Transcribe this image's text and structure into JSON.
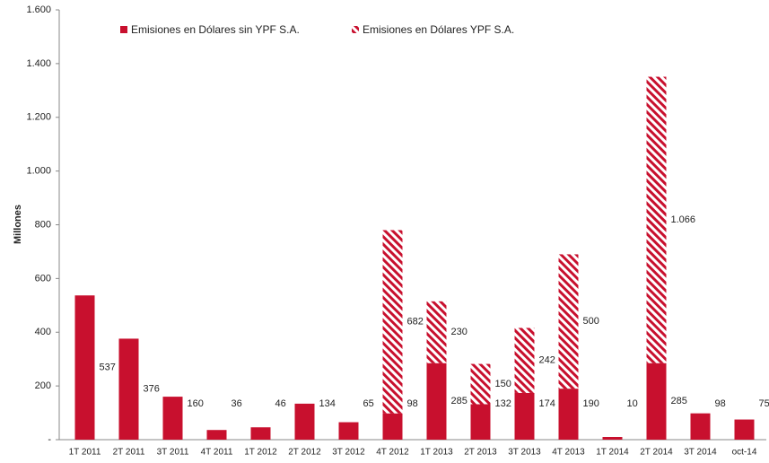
{
  "chart_data": {
    "type": "stacked_bar",
    "y_label": "Millones",
    "categories": [
      "1T 2011",
      "2T 2011",
      "3T 2011",
      "4T 2011",
      "1T 2012",
      "2T 2012",
      "3T 2012",
      "4T 2012",
      "1T 2013",
      "2T 2013",
      "3T 2013",
      "4T 2013",
      "1T 2014",
      "2T 2014",
      "3T 2014",
      "oct-14"
    ],
    "series": [
      {
        "name": "Emisiones en Dólares sin YPF S.A.",
        "color": "#c8102e",
        "pattern": "solid",
        "values": [
          537,
          376,
          160,
          36,
          46,
          134,
          65,
          98,
          285,
          132,
          174,
          190,
          10,
          285,
          98,
          75
        ]
      },
      {
        "name": "Emisiones en Dólares YPF S.A.",
        "color": "#c8102e",
        "pattern": "hatch",
        "values": [
          null,
          null,
          null,
          null,
          null,
          null,
          null,
          682,
          230,
          150,
          242,
          500,
          null,
          1066,
          null,
          null
        ],
        "value_labels": [
          null,
          null,
          null,
          null,
          null,
          null,
          null,
          "682",
          "230",
          "150",
          "242",
          "500",
          null,
          "1.066",
          null,
          null
        ]
      }
    ],
    "ylim": [
      0,
      1600
    ],
    "yticks": [
      {
        "value": 0,
        "label": "-"
      },
      200,
      400,
      600,
      800,
      {
        "value": 1000,
        "label": "1.000"
      },
      {
        "value": 1200,
        "label": "1.200"
      },
      {
        "value": 1400,
        "label": "1.400"
      },
      {
        "value": 1600,
        "label": "1.600"
      }
    ],
    "grid": false,
    "legend": "top"
  }
}
